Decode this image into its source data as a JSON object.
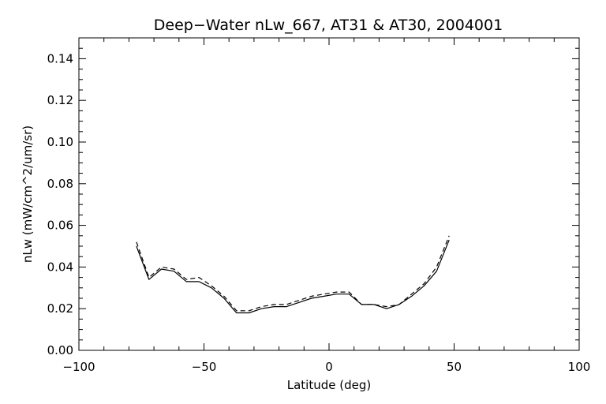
{
  "chart_data": {
    "type": "line",
    "title": "Deep−Water nLw_667, AT31 & AT30, 2004001",
    "xlabel": "Latitude (deg)",
    "ylabel": "nLw (mW/cm^2/um/sr)",
    "xlim": [
      -100,
      100
    ],
    "ylim": [
      0.0,
      0.15
    ],
    "x_ticks": [
      -100,
      -50,
      0,
      50,
      100
    ],
    "x_tick_labels": [
      "−100",
      "−50",
      "0",
      "50",
      "100"
    ],
    "y_ticks": [
      0.0,
      0.02,
      0.04,
      0.06,
      0.08,
      0.1,
      0.12,
      0.14
    ],
    "y_tick_labels": [
      "0.00",
      "0.02",
      "0.04",
      "0.06",
      "0.08",
      "0.10",
      "0.12",
      "0.14"
    ],
    "grid": false,
    "series": [
      {
        "style": "solid",
        "color": "#000000",
        "x": [
          -77,
          -72,
          -67,
          -62,
          -57,
          -52,
          -47,
          -42,
          -37,
          -32,
          -27,
          -22,
          -17,
          -12,
          -7,
          -2,
          3,
          8,
          13,
          18,
          23,
          28,
          33,
          38,
          43,
          48
        ],
        "y": [
          0.05,
          0.034,
          0.039,
          0.038,
          0.033,
          0.033,
          0.03,
          0.025,
          0.018,
          0.018,
          0.02,
          0.021,
          0.021,
          0.023,
          0.025,
          0.026,
          0.027,
          0.027,
          0.022,
          0.022,
          0.02,
          0.022,
          0.026,
          0.031,
          0.038,
          0.053
        ]
      },
      {
        "style": "dashed",
        "color": "#000000",
        "x": [
          -77,
          -72,
          -67,
          -62,
          -57,
          -52,
          -47,
          -42,
          -37,
          -32,
          -27,
          -22,
          -17,
          -12,
          -7,
          -2,
          3,
          8,
          13,
          18,
          23,
          28,
          33,
          38,
          43,
          48
        ],
        "y": [
          0.052,
          0.035,
          0.04,
          0.039,
          0.034,
          0.035,
          0.031,
          0.026,
          0.019,
          0.019,
          0.021,
          0.022,
          0.022,
          0.024,
          0.026,
          0.027,
          0.028,
          0.028,
          0.022,
          0.022,
          0.021,
          0.022,
          0.027,
          0.032,
          0.04,
          0.055
        ]
      }
    ]
  }
}
